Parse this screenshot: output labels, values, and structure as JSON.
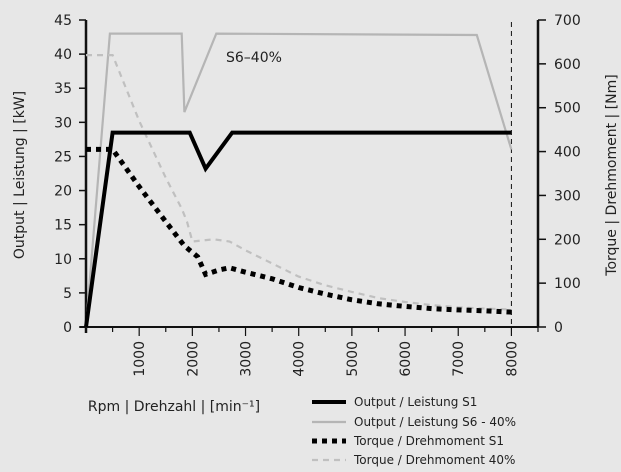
{
  "chart_data": {
    "type": "line",
    "xlabel": "Rpm | Drehzahl | [min⁻¹]",
    "ylabel_left": "Output | Leistung | [kW]",
    "ylabel_right": "Torque | Drehmoment | [Nm]",
    "xlim": [
      0,
      8500
    ],
    "ylim_left": [
      0,
      45
    ],
    "ylim_right": [
      0,
      700
    ],
    "x_ticks": [
      "1000",
      "2000",
      "3000",
      "4000",
      "5000",
      "6000",
      "7000",
      "8000"
    ],
    "x_tick_values": [
      1000,
      2000,
      3000,
      4000,
      5000,
      6000,
      7000,
      8000
    ],
    "y_left_ticks": [
      "0",
      "5",
      "10",
      "15",
      "20",
      "25",
      "30",
      "35",
      "40",
      "45"
    ],
    "y_left_tick_values": [
      0,
      5,
      10,
      15,
      20,
      25,
      30,
      35,
      40,
      45
    ],
    "y_right_ticks": [
      "0",
      "100",
      "200",
      "300",
      "400",
      "500",
      "600",
      "700"
    ],
    "y_right_tick_values": [
      0,
      100,
      200,
      300,
      400,
      500,
      600,
      700
    ],
    "annotation": "S6–40%",
    "grid": false,
    "vertical_marker_x": 8000,
    "series": [
      {
        "name": "Output / Leistung S1",
        "axis": "left",
        "style": "solid-bold",
        "color": "#000000",
        "points": [
          [
            0,
            0
          ],
          [
            500,
            28.5
          ],
          [
            1950,
            28.5
          ],
          [
            2250,
            23.2
          ],
          [
            2750,
            28.5
          ],
          [
            8000,
            28.5
          ]
        ]
      },
      {
        "name": "Output / Leistung S6 - 40%",
        "axis": "left",
        "style": "solid-thin",
        "color": "#b5b5b5",
        "points": [
          [
            0,
            0
          ],
          [
            450,
            43
          ],
          [
            1800,
            43
          ],
          [
            1850,
            31.5
          ],
          [
            2450,
            43
          ],
          [
            7350,
            42.8
          ],
          [
            8000,
            26
          ]
        ]
      },
      {
        "name": "Torque / Drehmoment S1",
        "axis": "right",
        "style": "dotted-bold",
        "color": "#000000",
        "points": [
          [
            0,
            405
          ],
          [
            500,
            405
          ],
          [
            1000,
            320
          ],
          [
            1500,
            240
          ],
          [
            1850,
            185
          ],
          [
            2100,
            160
          ],
          [
            2250,
            120
          ],
          [
            2500,
            130
          ],
          [
            2700,
            135
          ],
          [
            3000,
            125
          ],
          [
            3500,
            110
          ],
          [
            4000,
            90
          ],
          [
            4500,
            75
          ],
          [
            5000,
            62
          ],
          [
            5500,
            53
          ],
          [
            6000,
            47
          ],
          [
            6500,
            42
          ],
          [
            7000,
            39
          ],
          [
            7500,
            37
          ],
          [
            8000,
            34
          ]
        ]
      },
      {
        "name": "Torque / Drehmoment 40%",
        "axis": "right",
        "style": "dashed-thin",
        "color": "#c0c0c0",
        "points": [
          [
            0,
            620
          ],
          [
            500,
            620
          ],
          [
            1000,
            470
          ],
          [
            1500,
            340
          ],
          [
            1800,
            270
          ],
          [
            1900,
            240
          ],
          [
            2000,
            195
          ],
          [
            2400,
            200
          ],
          [
            2700,
            195
          ],
          [
            3000,
            175
          ],
          [
            3500,
            145
          ],
          [
            4000,
            115
          ],
          [
            4500,
            95
          ],
          [
            5000,
            80
          ],
          [
            5500,
            66
          ],
          [
            6000,
            57
          ],
          [
            6500,
            50
          ],
          [
            7000,
            45
          ],
          [
            7500,
            42
          ],
          [
            8000,
            40
          ]
        ]
      }
    ],
    "legend_position": "bottom-right"
  }
}
